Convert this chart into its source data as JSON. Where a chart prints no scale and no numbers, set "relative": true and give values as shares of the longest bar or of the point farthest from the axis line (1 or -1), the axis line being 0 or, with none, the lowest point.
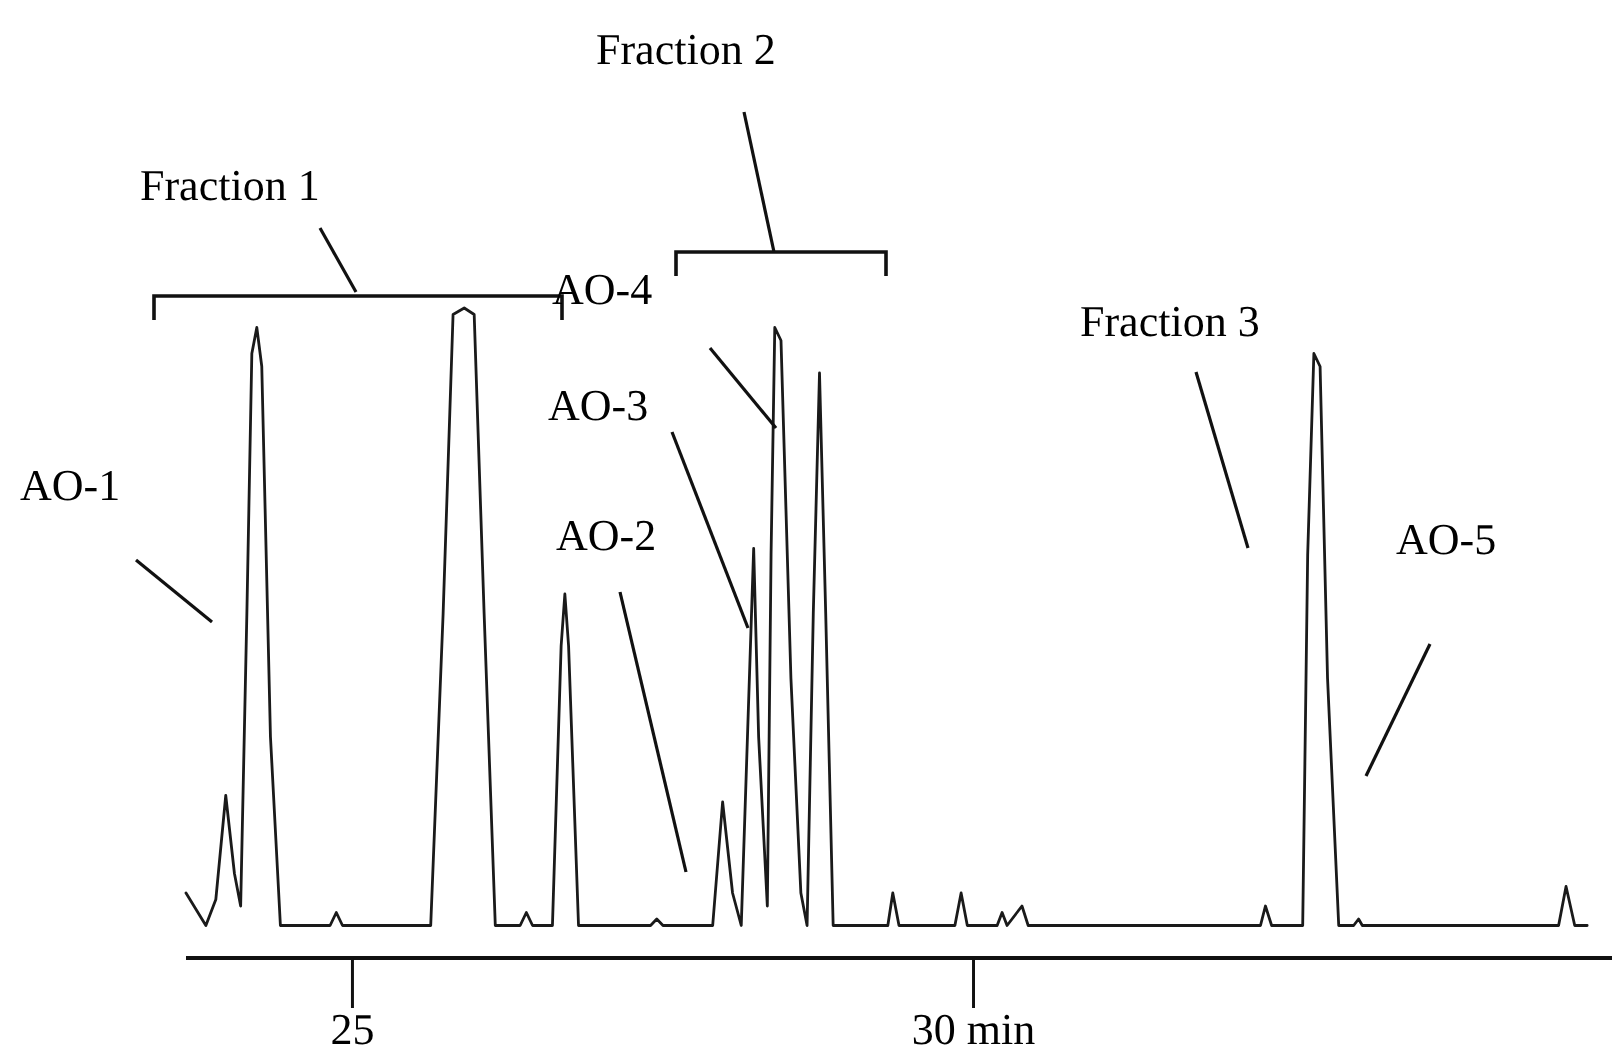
{
  "chart_data": {
    "type": "line",
    "relative": true,
    "xlim": [
      23.66,
      35.14
    ],
    "xticks": [
      25,
      {
        "value": 30,
        "label": "30 min"
      }
    ],
    "tick_labels": "x",
    "marker": "none",
    "line_style": "solid",
    "annotations": [
      "Fraction  1",
      "Fraction 2",
      "Fraction 3",
      "AO-1",
      "AO-2",
      "AO-3",
      "AO-4",
      "AO-5"
    ],
    "series": [
      {
        "color": "#1a1a1a",
        "x": [
          23.66,
          23.82,
          23.9,
          23.98,
          24.05,
          24.1,
          24.15,
          24.19,
          24.23,
          24.27,
          24.34,
          24.42,
          24.82,
          24.87,
          24.92,
          25.63,
          25.73,
          25.81,
          25.9,
          25.98,
          26.06,
          26.15,
          26.35,
          26.4,
          26.45,
          26.61,
          26.68,
          26.71,
          26.74,
          26.82,
          27.4,
          27.45,
          27.5,
          27.9,
          27.98,
          28.06,
          28.13,
          28.18,
          28.23,
          28.27,
          28.34,
          28.37,
          28.4,
          28.45,
          28.53,
          28.61,
          28.66,
          28.71,
          28.76,
          28.81,
          28.87,
          29.31,
          29.35,
          29.4,
          29.85,
          29.9,
          29.95,
          30.19,
          30.23,
          30.27,
          30.39,
          30.44,
          32.31,
          32.35,
          32.4,
          32.65,
          32.69,
          32.74,
          32.79,
          32.85,
          32.94,
          33.06,
          33.1,
          33.13,
          34.71,
          34.77,
          34.84,
          34.94
        ],
        "values": [
          0.1,
          0.05,
          0.09,
          0.25,
          0.13,
          0.08,
          0.53,
          0.93,
          0.97,
          0.91,
          0.34,
          0.05,
          0.05,
          0.07,
          0.05,
          0.05,
          0.53,
          0.99,
          1,
          0.99,
          0.53,
          0.05,
          0.05,
          0.07,
          0.05,
          0.05,
          0.48,
          0.56,
          0.48,
          0.05,
          0.05,
          0.06,
          0.05,
          0.05,
          0.24,
          0.1,
          0.05,
          0.34,
          0.63,
          0.34,
          0.08,
          0.62,
          0.97,
          0.95,
          0.43,
          0.1,
          0.05,
          0.53,
          0.9,
          0.53,
          0.05,
          0.05,
          0.1,
          0.05,
          0.05,
          0.1,
          0.05,
          0.05,
          0.07,
          0.05,
          0.08,
          0.05,
          0.05,
          0.08,
          0.05,
          0.05,
          0.62,
          0.93,
          0.91,
          0.43,
          0.05,
          0.05,
          0.06,
          0.05,
          0.05,
          0.11,
          0.05,
          0.05
        ]
      }
    ]
  }
}
